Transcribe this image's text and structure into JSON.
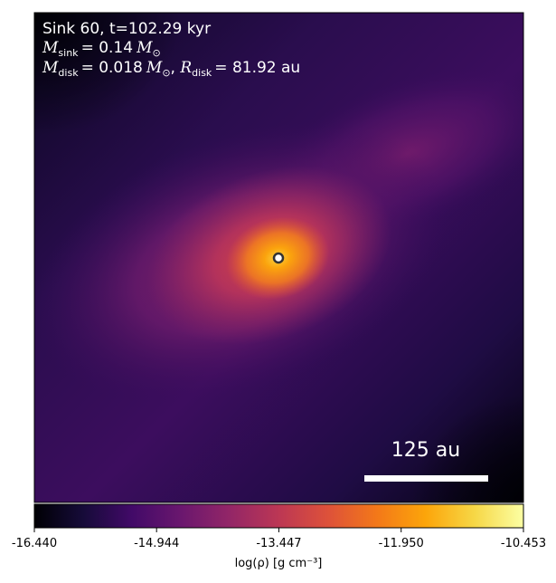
{
  "chart_data": {
    "type": "heatmap",
    "colormap": "inferno",
    "info": {
      "line1": "Sink 60, t=102.29 kyr",
      "msink_symbol": "M",
      "msink_sub": "sink",
      "msink_value": "= 0.14",
      "mdisk_symbol": "M",
      "mdisk_sub": "disk",
      "mdisk_value": "= 0.018",
      "rdisk_symbol": "R",
      "rdisk_sub": "disk",
      "rdisk_value": "= 81.92 au",
      "msun_symbol": "M",
      "msun_sub": "⊙"
    },
    "scale_bar": {
      "label": "125 au",
      "length_au": 125
    },
    "colorbar": {
      "label": "log(ρ) [g cm⁻³]",
      "ticks": [
        "-16.440",
        "-14.944",
        "-13.447",
        "-11.950",
        "-10.453"
      ],
      "vmin": -16.44,
      "vmax": -10.453
    },
    "sink": {
      "marker": "circle"
    },
    "colors": {
      "scale_bar": "#ffffff",
      "sink_fill": "#ffffff",
      "sink_edge": "#333333"
    }
  }
}
